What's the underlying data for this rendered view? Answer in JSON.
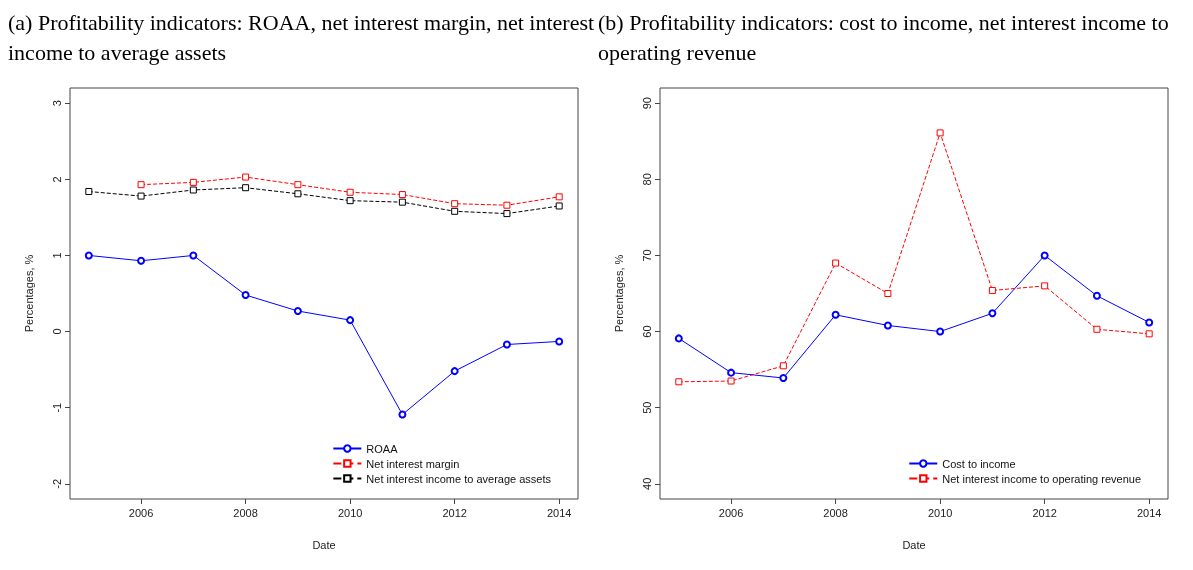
{
  "chart_data": [
    {
      "type": "line",
      "title": "(a) Profitability indicators: ROAA, net interest margin, net interest income to average assets",
      "xlabel": "Date",
      "ylabel": "Percentages, %",
      "x": [
        2005,
        2006,
        2007,
        2008,
        2009,
        2010,
        2011,
        2012,
        2013,
        2014
      ],
      "series": [
        {
          "name": "ROAA",
          "color": "#0000ff",
          "marker": "circle",
          "line_style": "solid",
          "values": [
            1.0,
            0.93,
            1.0,
            0.48,
            0.27,
            0.15,
            -1.09,
            -0.52,
            -0.17,
            -0.13
          ]
        },
        {
          "name": "Net interest margin",
          "color": "#ff0000",
          "marker": "square",
          "line_style": "dashed",
          "values": [
            null,
            1.93,
            1.96,
            2.03,
            1.93,
            1.83,
            1.8,
            1.68,
            1.66,
            1.77
          ]
        },
        {
          "name": "Net interest income to average assets",
          "color": "#000000",
          "marker": "square",
          "line_style": "dashed",
          "values": [
            1.84,
            1.78,
            1.86,
            1.89,
            1.81,
            1.72,
            1.7,
            1.58,
            1.55,
            1.65
          ]
        }
      ],
      "xlim": [
        2004.64,
        2014.36
      ],
      "xticks": [
        2006,
        2008,
        2010,
        2012,
        2014
      ],
      "ylim": [
        -2.2,
        3.2
      ],
      "yticks": [
        -2,
        -1,
        0,
        1,
        2,
        3
      ],
      "grid": false,
      "legend": "bottom right"
    },
    {
      "type": "line",
      "title": "(b) Profitability indicators: cost to income, net interest income to operating revenue",
      "xlabel": "Date",
      "ylabel": "Percentages, %",
      "x": [
        2005,
        2006,
        2007,
        2008,
        2009,
        2010,
        2011,
        2012,
        2013,
        2014
      ],
      "series": [
        {
          "name": "Cost to income",
          "color": "#0000ff",
          "marker": "circle",
          "line_style": "solid",
          "values": [
            59.1,
            54.6,
            53.9,
            62.2,
            60.8,
            60.0,
            62.4,
            70.0,
            64.7,
            61.2
          ]
        },
        {
          "name": "Net interest income to operating revenue",
          "color": "#ff0000",
          "marker": "square",
          "line_style": "dashed",
          "values": [
            53.4,
            53.5,
            55.5,
            69.0,
            65.0,
            86.1,
            65.4,
            66.0,
            60.3,
            59.7
          ]
        }
      ],
      "xlim": [
        2004.64,
        2014.36
      ],
      "xticks": [
        2006,
        2008,
        2010,
        2012,
        2014
      ],
      "ylim": [
        38,
        92
      ],
      "yticks": [
        40,
        50,
        60,
        70,
        80,
        90
      ],
      "grid": false,
      "legend": "bottom right"
    }
  ]
}
